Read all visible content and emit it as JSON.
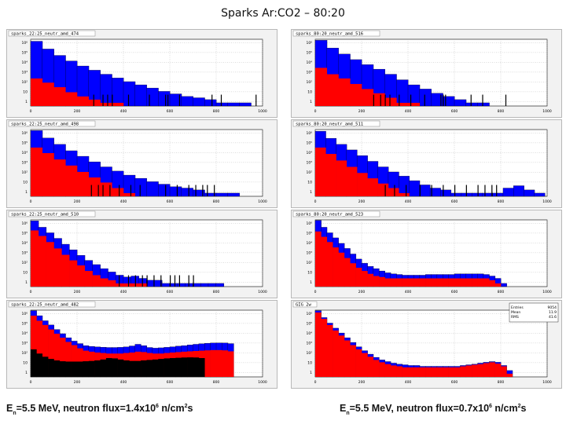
{
  "title": "Sparks Ar:CO2 – 80:20",
  "captions": [
    {
      "pre": "E",
      "sub": "n",
      "mid": "=5.5 MeV,   neutron flux=1.4x10",
      "sup": "6",
      "post": " n/cm",
      "sup2": "2",
      "tail": "s"
    },
    {
      "pre": "E",
      "sub": "n",
      "mid": "=5.5 MeV,   neutron flux=0.7x10",
      "sup": "6",
      "post": " n/cm",
      "sup2": "2",
      "tail": "s"
    }
  ],
  "chart_data": [
    {
      "type": "bar",
      "title": "sparks_22:25_neutr_amd_474",
      "xlim": [
        0,
        1000
      ],
      "x_ticks": [
        "0",
        "200",
        "400",
        "600",
        "800",
        "1000"
      ],
      "y_scale": "log",
      "y_ticks": [
        "10⁶",
        "10⁵",
        "10⁴",
        "10³",
        "10²",
        "10",
        "1"
      ],
      "grid": true,
      "series": [
        {
          "color": "#0000ff",
          "values": [
            650000,
            120000,
            30000,
            9000,
            3000,
            1200,
            500,
            220,
            100,
            50,
            25,
            12,
            7,
            4,
            3,
            2,
            1,
            1,
            1,
            0
          ]
        },
        {
          "color": "#ff0000",
          "values": [
            200,
            80,
            30,
            10,
            4,
            2,
            1,
            1,
            0,
            0,
            0,
            0,
            0,
            0,
            0,
            0,
            0,
            0,
            0,
            0
          ]
        }
      ],
      "bin_width_frac": 0.05,
      "spikes": [
        0.27,
        0.31,
        0.33,
        0.35,
        0.42,
        0.51,
        0.58,
        0.59,
        0.64,
        0.78,
        0.82,
        0.97
      ]
    },
    {
      "type": "bar",
      "title": "sparks_80:20_neutr_amd_516",
      "xlim": [
        0,
        1000
      ],
      "x_ticks": [
        "0",
        "200",
        "400",
        "600",
        "800",
        "1000"
      ],
      "y_scale": "log",
      "y_ticks": [
        "10⁶",
        "10⁵",
        "10⁴",
        "10³",
        "10²",
        "10",
        "1"
      ],
      "grid": true,
      "series": [
        {
          "color": "#0000ff",
          "values": [
            800000,
            150000,
            40000,
            12000,
            4000,
            1500,
            500,
            150,
            50,
            20,
            8,
            4,
            2,
            1,
            1,
            0,
            0,
            0,
            0,
            0
          ]
        },
        {
          "color": "#ff0000",
          "values": [
            2000,
            500,
            200,
            60,
            20,
            8,
            3,
            1,
            1,
            0,
            0,
            0,
            0,
            0,
            0,
            0,
            0,
            0,
            0,
            0
          ]
        }
      ],
      "bin_width_frac": 0.05,
      "spikes": [
        0.25,
        0.28,
        0.3,
        0.32,
        0.36,
        0.41,
        0.47,
        0.54,
        0.55,
        0.56,
        0.67,
        0.72,
        0.82
      ]
    },
    {
      "type": "bar",
      "title": "sparks_22:25_neutr_amd_498",
      "xlim": [
        0,
        1000
      ],
      "x_ticks": [
        "0",
        "200",
        "400",
        "600",
        "800",
        "1000"
      ],
      "y_scale": "log",
      "y_ticks": [
        "10⁶",
        "10⁵",
        "10⁴",
        "10³",
        "10²",
        "10",
        "1"
      ],
      "grid": true,
      "series": [
        {
          "color": "#0000ff",
          "values": [
            800000,
            160000,
            40000,
            10000,
            3000,
            900,
            300,
            120,
            50,
            25,
            12,
            7,
            4,
            3,
            2,
            1,
            1,
            1,
            0,
            0
          ]
        },
        {
          "color": "#ff0000",
          "values": [
            20000,
            6000,
            1500,
            400,
            100,
            30,
            10,
            3,
            1,
            0,
            0,
            0,
            0,
            0,
            0,
            0,
            0,
            0,
            0,
            0
          ]
        }
      ],
      "bin_width_frac": 0.05,
      "spikes": [
        0.26,
        0.29,
        0.31,
        0.34,
        0.38,
        0.43,
        0.47,
        0.58,
        0.63,
        0.68,
        0.71,
        0.74,
        0.76,
        0.79
      ]
    },
    {
      "type": "bar",
      "title": "sparks_80:20_neutr_amd_511",
      "xlim": [
        0,
        1000
      ],
      "x_ticks": [
        "0",
        "200",
        "400",
        "600",
        "800",
        "1000"
      ],
      "y_scale": "log",
      "y_ticks": [
        "10⁶",
        "10⁵",
        "10⁴",
        "10³",
        "10²",
        "10",
        "1"
      ],
      "grid": true,
      "series": [
        {
          "color": "#0000ff",
          "values": [
            700000,
            150000,
            40000,
            12000,
            3500,
            1000,
            300,
            100,
            40,
            15,
            6,
            3,
            2,
            1,
            1,
            1,
            1,
            1,
            3,
            5,
            2,
            1
          ]
        },
        {
          "color": "#ff0000",
          "values": [
            20000,
            5000,
            1200,
            300,
            80,
            25,
            8,
            3,
            1,
            0,
            0,
            0,
            0,
            0,
            0,
            0,
            0,
            0,
            0,
            0,
            0,
            0
          ]
        }
      ],
      "bin_width_frac": 0.045,
      "spikes": [
        0.3,
        0.34,
        0.39,
        0.45,
        0.5,
        0.55,
        0.6,
        0.65,
        0.7,
        0.73,
        0.76,
        0.78
      ]
    },
    {
      "type": "bar",
      "title": "sparks_22:25_neutr_amd_510",
      "xlim": [
        0,
        1000
      ],
      "x_ticks": [
        "0",
        "200",
        "400",
        "600",
        "800",
        "1000"
      ],
      "y_scale": "log",
      "y_ticks": [
        "10⁶",
        "10⁵",
        "10⁴",
        "10³",
        "10²",
        "10",
        "1"
      ],
      "grid": true,
      "series": [
        {
          "color": "#0000ff",
          "values": [
            800000,
            200000,
            60000,
            18000,
            5000,
            1500,
            450,
            150,
            60,
            25,
            12,
            6,
            4,
            5,
            3,
            2,
            2,
            1,
            1,
            1,
            1,
            1,
            1,
            1,
            1,
            0,
            0,
            0,
            0,
            0
          ]
        },
        {
          "color": "#ff0000",
          "values": [
            100000,
            30000,
            8000,
            2000,
            500,
            150,
            50,
            15,
            6,
            3,
            2,
            1,
            1,
            1,
            1,
            0,
            0,
            0,
            0,
            0,
            0,
            0,
            0,
            0,
            0,
            0,
            0,
            0,
            0,
            0
          ]
        }
      ],
      "bin_width_frac": 0.0333,
      "spikes": [
        0.38,
        0.42,
        0.45,
        0.48,
        0.5,
        0.53,
        0.56,
        0.6,
        0.62,
        0.64,
        0.68,
        0.7
      ]
    },
    {
      "type": "bar",
      "title": "sparks_80:20_neutr_amd_523",
      "xlim": [
        0,
        1000
      ],
      "x_ticks": [
        "0",
        "200",
        "400",
        "600",
        "800",
        "1000"
      ],
      "y_scale": "log",
      "y_ticks": [
        "10⁶",
        "10⁵",
        "10⁴",
        "10³",
        "10²",
        "10",
        "1"
      ],
      "grid": true,
      "series": [
        {
          "color": "#0000ff",
          "values": [
            900000,
            200000,
            60000,
            20000,
            6000,
            2000,
            600,
            200,
            80,
            40,
            25,
            15,
            10,
            8,
            7,
            6,
            6,
            6,
            6,
            7,
            7,
            7,
            7,
            7,
            8,
            8,
            8,
            8,
            8,
            7,
            5,
            3,
            1,
            0,
            0,
            0,
            0,
            0,
            0,
            0
          ]
        },
        {
          "color": "#ff0000",
          "values": [
            80000,
            25000,
            8000,
            2500,
            800,
            250,
            80,
            30,
            15,
            8,
            5,
            4,
            3,
            3,
            3,
            3,
            3,
            3,
            3,
            3,
            3,
            3,
            3,
            3,
            3,
            3,
            3,
            3,
            3,
            3,
            2,
            1,
            0,
            0,
            0,
            0,
            0,
            0,
            0,
            0
          ]
        }
      ],
      "bin_width_frac": 0.025,
      "spikes": []
    },
    {
      "type": "bar",
      "title": "sparks_22:25_neutr_amd_482",
      "xlim": [
        0,
        1000
      ],
      "x_ticks": [
        "0",
        "200",
        "400",
        "600",
        "800",
        "1000"
      ],
      "y_scale": "log",
      "y_ticks": [
        "10⁶",
        "10⁵",
        "10⁴",
        "10³",
        "10²",
        "10",
        "1"
      ],
      "grid": true,
      "series": [
        {
          "color": "#0000ff",
          "values": [
            900000,
            300000,
            100000,
            40000,
            15000,
            6000,
            2500,
            1200,
            700,
            450,
            380,
            340,
            320,
            300,
            300,
            310,
            340,
            420,
            600,
            450,
            300,
            260,
            280,
            310,
            350,
            400,
            450,
            520,
            600,
            680,
            750,
            800,
            820,
            800,
            700,
            0,
            0,
            0,
            0,
            0
          ]
        },
        {
          "color": "#ff0000",
          "values": [
            300000,
            100000,
            40000,
            15000,
            6000,
            2500,
            1000,
            500,
            250,
            150,
            120,
            100,
            90,
            80,
            80,
            80,
            90,
            100,
            120,
            110,
            90,
            80,
            80,
            90,
            100,
            110,
            120,
            130,
            140,
            150,
            160,
            170,
            170,
            160,
            130,
            0,
            0,
            0,
            0,
            0
          ]
        },
        {
          "color": "#000000",
          "values": [
            200,
            80,
            40,
            25,
            18,
            15,
            14,
            14,
            14,
            15,
            16,
            18,
            22,
            30,
            28,
            22,
            18,
            16,
            16,
            18,
            20,
            22,
            25,
            28,
            30,
            32,
            34,
            35,
            34,
            30,
            0,
            0,
            0,
            0,
            0,
            0,
            0,
            0,
            0,
            0
          ]
        }
      ],
      "bin_width_frac": 0.025,
      "spikes": []
    },
    {
      "type": "bar",
      "title": "GIG 2w",
      "xlim": [
        0,
        1000
      ],
      "x_ticks": [
        "0",
        "200",
        "400",
        "600",
        "800",
        "1000"
      ],
      "y_scale": "log",
      "y_ticks": [
        "10⁶",
        "10⁵",
        "10⁴",
        "10³",
        "10²",
        "10",
        "1"
      ],
      "grid": true,
      "stats": [
        {
          "label": "Entries",
          "value": "9054"
        },
        {
          "label": "Mean",
          "value": "11.9"
        },
        {
          "label": "RMS",
          "value": "41.6"
        }
      ],
      "series": [
        {
          "color": "#0000ff",
          "values": [
            900000,
            200000,
            60000,
            20000,
            7000,
            2500,
            900,
            350,
            150,
            70,
            35,
            20,
            14,
            10,
            8,
            7,
            6,
            6,
            5,
            5,
            5,
            5,
            5,
            5,
            5,
            6,
            7,
            8,
            10,
            12,
            14,
            12,
            6,
            2,
            0,
            0,
            0,
            0,
            0,
            0
          ]
        },
        {
          "color": "#ff0000",
          "values": [
            600000,
            150000,
            40000,
            12000,
            4000,
            1400,
            500,
            200,
            90,
            40,
            20,
            12,
            8,
            6,
            5,
            4,
            4,
            4,
            4,
            4,
            4,
            4,
            4,
            4,
            4,
            5,
            6,
            7,
            8,
            10,
            12,
            9,
            5,
            1,
            0,
            0,
            0,
            0,
            0,
            0
          ]
        }
      ],
      "bin_width_frac": 0.025,
      "spikes": []
    }
  ]
}
